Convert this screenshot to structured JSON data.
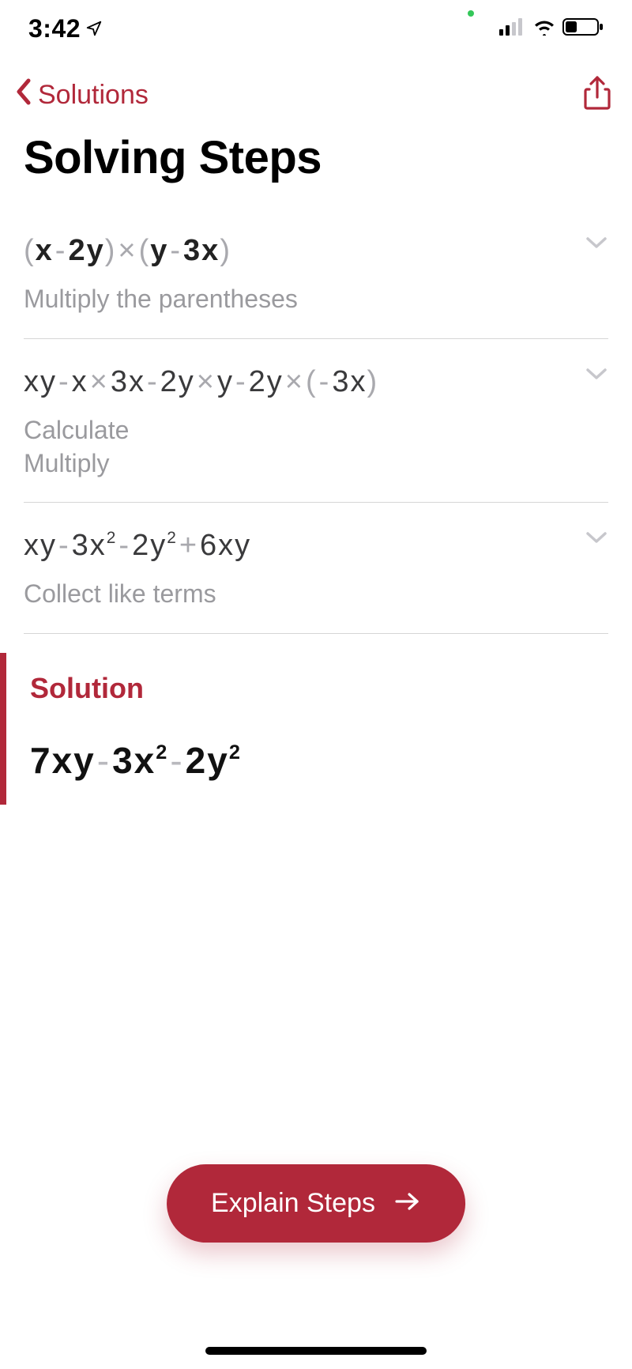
{
  "colors": {
    "accent": "#b1283a",
    "text": "#000000",
    "muted": "#9a9a9e",
    "paren": "#a9a9ae",
    "divider": "#d6d6d6",
    "background": "#ffffff"
  },
  "status": {
    "time": "3:42"
  },
  "nav": {
    "back_label": "Solutions"
  },
  "title": "Solving Steps",
  "steps": [
    {
      "expression_html": "<span class='paren'>(</span><span class='b'>x</span><span class='op'>-</span><span class='b'>2y</span><span class='paren'>)</span><span class='op'>×</span><span class='paren'>(</span><span class='b'>y</span><span class='op'>-</span><span class='b'>3x</span><span class='paren'>)</span>",
      "description": "Multiply the parentheses"
    },
    {
      "expression_html": "xy<span class='op'>-</span>x<span class='op'>×</span>3x<span class='op'>-</span>2y<span class='op'>×</span>y<span class='op'>-</span>2y<span class='op'>×</span><span class='paren'>(</span><span class='op'>-</span>3x<span class='paren'>)</span>",
      "description": "Calculate\nMultiply"
    },
    {
      "expression_html": "xy<span class='op'>-</span>3x<sup>2</sup><span class='op'>-</span>2y<sup>2</sup><span class='op'>+</span>6xy",
      "description": "Collect like terms"
    }
  ],
  "solution": {
    "label": "Solution",
    "expression_html": "7xy<span class='op'>-</span>3x<sup>2</sup><span class='op'>-</span>2y<sup>2</sup>"
  },
  "button": {
    "label": "Explain Steps"
  }
}
